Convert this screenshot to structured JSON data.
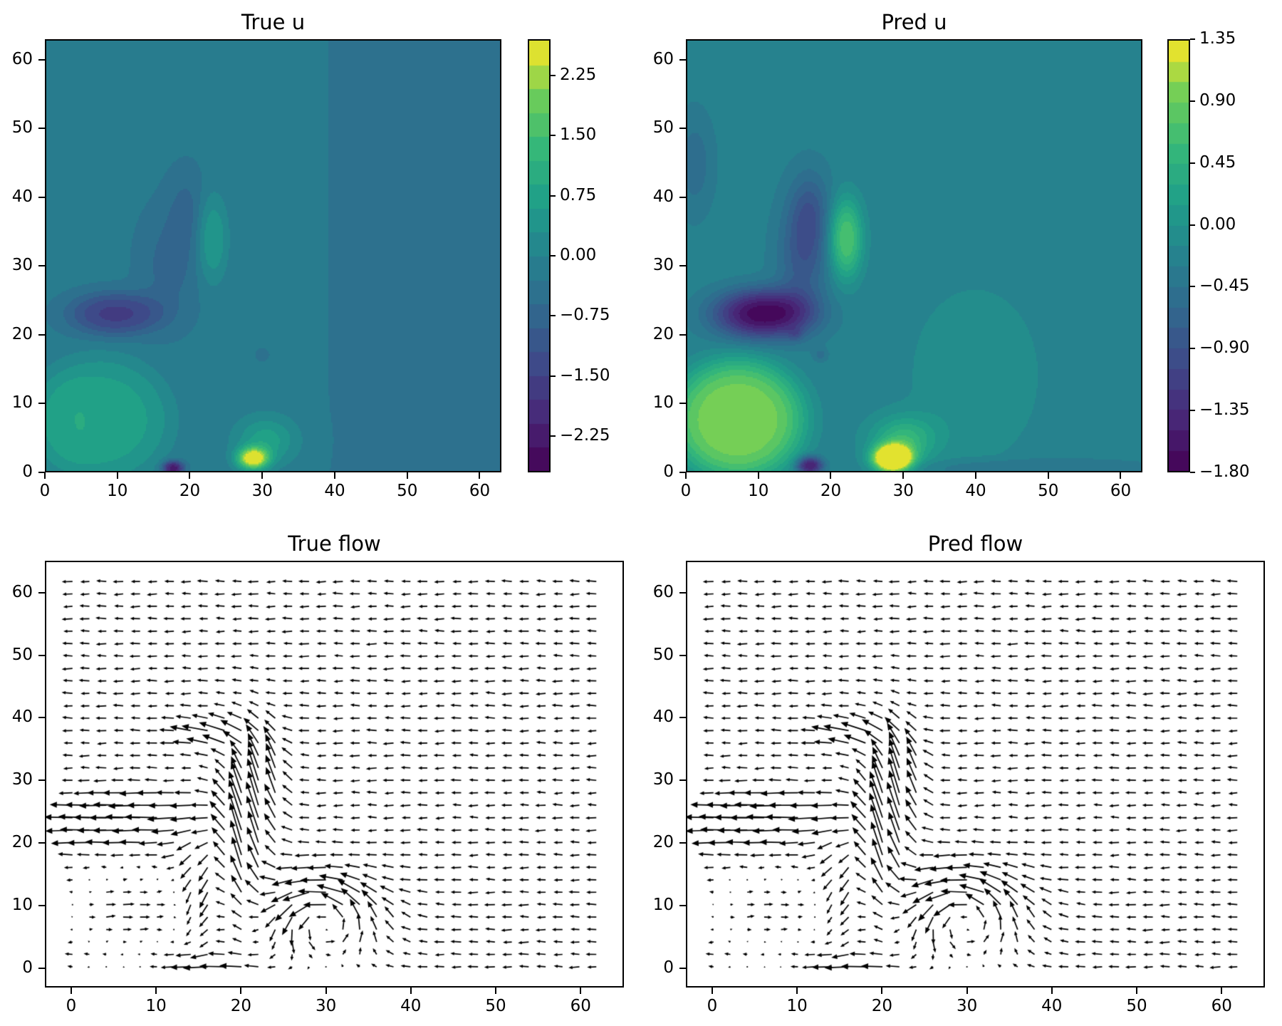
{
  "colors": {
    "background": "#ffffff",
    "text": "#000000",
    "spine": "#000000",
    "arrow": "#000000"
  },
  "colormap_stops": [
    [
      0.0,
      68,
      1,
      84
    ],
    [
      0.125,
      72,
      40,
      120
    ],
    [
      0.25,
      62,
      74,
      137
    ],
    [
      0.375,
      49,
      104,
      142
    ],
    [
      0.5,
      38,
      130,
      142
    ],
    [
      0.625,
      31,
      158,
      137
    ],
    [
      0.75,
      53,
      183,
      121
    ],
    [
      0.875,
      110,
      206,
      88
    ],
    [
      1.0,
      253,
      231,
      37
    ]
  ],
  "chart_data": [
    {
      "id": "true_u",
      "type": "heatmap",
      "title": "True u",
      "x_ticks": [
        0,
        10,
        20,
        30,
        40,
        50,
        60
      ],
      "y_ticks": [
        0,
        10,
        20,
        30,
        40,
        50,
        60
      ],
      "x_range": [
        0,
        63
      ],
      "y_range": [
        0,
        63
      ],
      "colorbar": {
        "vmin": -2.7,
        "vmax": 2.7,
        "n_bands": 18,
        "ticks": [
          2.25,
          1.5,
          0.75,
          0.0,
          -0.75,
          -1.5,
          -2.25
        ],
        "tick_decimals": 2
      },
      "field_model": {
        "background": -0.22,
        "blobs": [
          {
            "cx": 7.5,
            "cy": 7.5,
            "sx": 10,
            "sy": 9.5,
            "amp": 0.95,
            "pow": 2.2
          },
          {
            "cx": 3,
            "cy": 7,
            "sx": 5,
            "sy": 7,
            "amp": 0.18,
            "pow": 2
          },
          {
            "cx": 9.5,
            "cy": 23,
            "sx": 6.5,
            "sy": 3.2,
            "amp": -1.35,
            "pow": 1.3
          },
          {
            "cx": 17,
            "cy": 30,
            "sx": 4,
            "sy": 8,
            "amp": -0.5
          },
          {
            "cx": 19.5,
            "cy": 38,
            "sx": 2.6,
            "sy": 6,
            "amp": -0.45
          },
          {
            "cx": 23,
            "cy": 34,
            "sx": 2.2,
            "sy": 6.5,
            "amp": 0.85,
            "pow": 1.2
          },
          {
            "cx": 28.7,
            "cy": 1.8,
            "sx": 2.2,
            "sy": 1.6,
            "amp": 2.9,
            "pow": 1.1
          },
          {
            "cx": 30.5,
            "cy": 4.5,
            "sx": 4.2,
            "sy": 3.5,
            "amp": 1.0
          },
          {
            "cx": 17.6,
            "cy": 0.4,
            "sx": 1.5,
            "sy": 1.1,
            "amp": -2.1,
            "pow": 1.2
          },
          {
            "cx": 30,
            "cy": 17,
            "sx": 0.9,
            "sy": 0.9,
            "amp": -0.25
          }
        ],
        "steps": [
          {
            "axis": "x",
            "at": 37.5,
            "width": 2.5,
            "amp": -0.1
          }
        ]
      }
    },
    {
      "id": "pred_u",
      "type": "heatmap",
      "title": "Pred u",
      "x_ticks": [
        0,
        10,
        20,
        30,
        40,
        50,
        60
      ],
      "y_ticks": [
        0,
        10,
        20,
        30,
        40,
        50,
        60
      ],
      "x_range": [
        0,
        63
      ],
      "y_range": [
        0,
        63
      ],
      "colorbar": {
        "vmin": -1.8,
        "vmax": 1.35,
        "n_bands": 21,
        "ticks": [
          1.35,
          0.9,
          0.45,
          0.0,
          -0.45,
          -0.9,
          -1.35,
          -1.8
        ],
        "tick_decimals": 2
      },
      "field_model": {
        "background": -0.24,
        "blobs": [
          {
            "cx": 7,
            "cy": 7.5,
            "sx": 9.5,
            "sy": 9,
            "amp": 1.25,
            "pow": 2.2
          },
          {
            "cx": 10.5,
            "cy": 23,
            "sx": 6.8,
            "sy": 3.6,
            "amp": -1.5,
            "pow": 1.2
          },
          {
            "cx": 16,
            "cy": 31,
            "sx": 3.5,
            "sy": 8,
            "amp": -0.55
          },
          {
            "cx": 1,
            "cy": 45,
            "sx": 2.5,
            "sy": 7,
            "amp": -0.32
          },
          {
            "cx": 17,
            "cy": 38,
            "sx": 2.8,
            "sy": 6,
            "amp": -0.5
          },
          {
            "cx": 22,
            "cy": 34,
            "sx": 2.4,
            "sy": 6,
            "amp": 1.0,
            "pow": 1.2
          },
          {
            "cx": 28.5,
            "cy": 1.8,
            "sx": 2.6,
            "sy": 1.9,
            "amp": 2.6,
            "pow": 1.1
          },
          {
            "cx": 30,
            "cy": 4.5,
            "sx": 4.5,
            "sy": 3.5,
            "amp": 0.8
          },
          {
            "cx": 17,
            "cy": 0.8,
            "sx": 1.8,
            "sy": 1.3,
            "amp": -1.3,
            "pow": 1.2
          },
          {
            "cx": 40,
            "cy": 14,
            "sx": 9,
            "sy": 13,
            "amp": 0.22,
            "pow": 1.5
          },
          {
            "cx": 15,
            "cy": 20,
            "sx": 1,
            "sy": 1,
            "amp": -0.3
          },
          {
            "cx": 18.5,
            "cy": 17,
            "sx": 0.9,
            "sy": 0.9,
            "amp": -0.28
          },
          {
            "cx": 48,
            "cy": 0.5,
            "sx": 18,
            "sy": 1.4,
            "amp": -0.18,
            "pow": 2
          }
        ],
        "steps": []
      }
    },
    {
      "id": "true_flow",
      "type": "quiver",
      "title": "True flow",
      "x_ticks": [
        0,
        10,
        20,
        30,
        40,
        50,
        60
      ],
      "y_ticks": [
        0,
        10,
        20,
        30,
        40,
        50,
        60
      ],
      "x_range": [
        -3.1,
        65.1
      ],
      "y_range": [
        -3.1,
        65.1
      ],
      "grid": {
        "start": 0,
        "step": 2,
        "count": 32
      },
      "flow_model": {
        "uniform": {
          "u": -1.25,
          "v": 0
        },
        "vortices": [
          {
            "cx": 30,
            "cy": 8,
            "R": 6,
            "S": 5.5
          }
        ],
        "gusts": [
          {
            "cx": 4,
            "cy": 23,
            "sx": 11,
            "sy": 4.2,
            "du": -2.6,
            "dv": 0
          },
          {
            "cx": 9,
            "cy": 26,
            "sx": 6,
            "sy": 3,
            "du": -1.6,
            "dv": 0
          },
          {
            "cx": 20.5,
            "cy": 21,
            "sx": 3.0,
            "sy": 12,
            "du": 0,
            "dv": 5.2,
            "pow": 0.9
          },
          {
            "cx": 23.5,
            "cy": 31,
            "sx": 2.6,
            "sy": 8,
            "du": 0,
            "dv": 2.6
          },
          {
            "cx": 15.5,
            "cy": 14,
            "sx": 2.4,
            "sy": 9,
            "du": 0,
            "dv": -2.6
          },
          {
            "cx": 17,
            "cy": 37.5,
            "sx": 4.5,
            "sy": 2.8,
            "du": -2.2,
            "dv": 0.6
          },
          {
            "cx": 17,
            "cy": 0.5,
            "sx": 5,
            "sy": 1.6,
            "du": -2.4,
            "dv": 0
          },
          {
            "cx": 6.5,
            "cy": 9,
            "sx": 7,
            "sy": 7,
            "du": 2.6,
            "dv": 0.12,
            "pow": 1.5
          },
          {
            "cx": 5,
            "cy": 0,
            "sx": 6,
            "sy": 1.2,
            "du": 1.1,
            "dv": 0
          }
        ]
      }
    },
    {
      "id": "pred_flow",
      "type": "quiver",
      "title": "Pred flow",
      "x_ticks": [
        0,
        10,
        20,
        30,
        40,
        50,
        60
      ],
      "y_ticks": [
        0,
        10,
        20,
        30,
        40,
        50,
        60
      ],
      "x_range": [
        -3.1,
        65.1
      ],
      "y_range": [
        -3.1,
        65.1
      ],
      "grid": {
        "start": 0,
        "step": 2,
        "count": 32
      },
      "flow_model": {
        "uniform": {
          "u": -1.25,
          "v": 0
        },
        "vortices": [
          {
            "cx": 30,
            "cy": 8.5,
            "R": 6.5,
            "S": 5.2
          }
        ],
        "gusts": [
          {
            "cx": 4,
            "cy": 23,
            "sx": 11,
            "sy": 4.2,
            "du": -2.7,
            "dv": 0
          },
          {
            "cx": 9,
            "cy": 26,
            "sx": 6,
            "sy": 3,
            "du": -1.5,
            "dv": 0
          },
          {
            "cx": 20.5,
            "cy": 21,
            "sx": 3.0,
            "sy": 12,
            "du": 0,
            "dv": 5.0,
            "pow": 0.9
          },
          {
            "cx": 23,
            "cy": 31,
            "sx": 2.6,
            "sy": 8,
            "du": 0,
            "dv": 2.5
          },
          {
            "cx": 15.5,
            "cy": 14,
            "sx": 2.4,
            "sy": 9,
            "du": 0,
            "dv": -2.2
          },
          {
            "cx": 17,
            "cy": 37.5,
            "sx": 4.5,
            "sy": 2.8,
            "du": -2.1,
            "dv": 0.6
          },
          {
            "cx": 17,
            "cy": 0.5,
            "sx": 5,
            "sy": 1.6,
            "du": -2.3,
            "dv": 0
          },
          {
            "cx": 6.5,
            "cy": 9,
            "sx": 7,
            "sy": 7,
            "du": 2.3,
            "dv": 0.1,
            "pow": 1.5
          },
          {
            "cx": 5,
            "cy": 0,
            "sx": 6,
            "sy": 1.2,
            "du": 1.1,
            "dv": 0
          },
          {
            "cx": 5,
            "cy": 16.5,
            "sx": 6,
            "sy": 1.6,
            "du": -0.3,
            "dv": 0
          }
        ]
      }
    }
  ]
}
